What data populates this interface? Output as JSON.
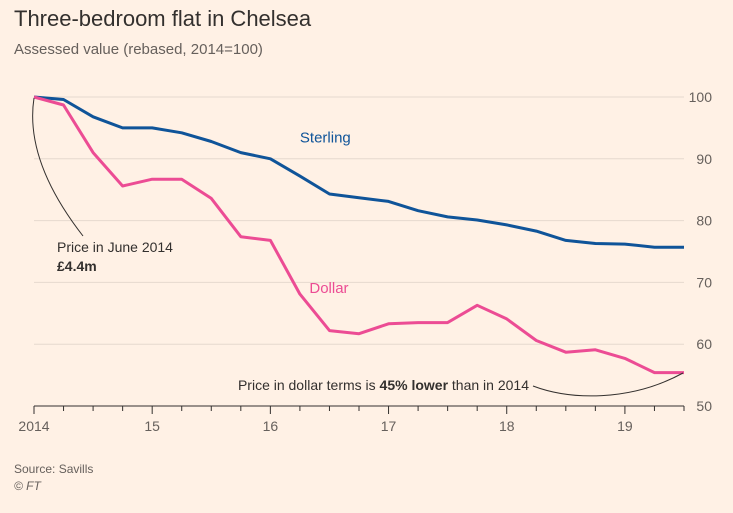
{
  "chart_data": {
    "type": "line",
    "title": "Three-bedroom flat in Chelsea",
    "subtitle": "Assessed value (rebased, 2014=100)",
    "x_ticks": [
      {
        "x": 2014,
        "label": "2014"
      },
      {
        "x": 2015,
        "label": "15"
      },
      {
        "x": 2016,
        "label": "16"
      },
      {
        "x": 2017,
        "label": "17"
      },
      {
        "x": 2018,
        "label": "18"
      },
      {
        "x": 2019,
        "label": "19"
      }
    ],
    "xlim": [
      2014,
      2019.5
    ],
    "ylim": [
      50,
      100
    ],
    "y_ticks": [
      50,
      60,
      70,
      80,
      90,
      100
    ],
    "grid": true,
    "series": [
      {
        "name": "Sterling",
        "color": "#0f5499",
        "x": [
          2014.0,
          2014.25,
          2014.5,
          2014.75,
          2015.0,
          2015.25,
          2015.5,
          2015.75,
          2016.0,
          2016.25,
          2016.5,
          2016.75,
          2017.0,
          2017.25,
          2017.5,
          2017.75,
          2018.0,
          2018.25,
          2018.5,
          2018.75,
          2019.0,
          2019.25,
          2019.5
        ],
        "values": [
          100.0,
          99.6,
          96.8,
          95.0,
          95.0,
          94.2,
          92.8,
          91.0,
          90.0,
          87.2,
          84.3,
          83.7,
          83.1,
          81.6,
          80.6,
          80.1,
          79.3,
          78.3,
          76.8,
          76.3,
          76.2,
          75.7,
          75.7
        ]
      },
      {
        "name": "Dollar",
        "color": "#ec4c94",
        "x": [
          2014.0,
          2014.25,
          2014.5,
          2014.75,
          2015.0,
          2015.25,
          2015.5,
          2015.75,
          2016.0,
          2016.25,
          2016.5,
          2016.75,
          2017.0,
          2017.25,
          2017.5,
          2017.75,
          2018.0,
          2018.25,
          2018.5,
          2018.75,
          2019.0,
          2019.25,
          2019.5
        ],
        "values": [
          100.0,
          98.7,
          91.0,
          85.6,
          86.7,
          86.7,
          83.6,
          77.4,
          76.8,
          68.1,
          62.2,
          61.7,
          63.3,
          63.5,
          63.5,
          66.3,
          64.1,
          60.6,
          58.7,
          59.1,
          57.7,
          55.4,
          55.4
        ]
      }
    ],
    "annotations": [
      {
        "id": "start",
        "line1": "Price in June 2014",
        "line2": "£4.4m"
      },
      {
        "id": "end",
        "prefix": "Price in dollar terms is ",
        "bold": "45% lower",
        "suffix": " than in 2014"
      }
    ]
  },
  "source": "Source: Savills",
  "copyright": "© FT"
}
